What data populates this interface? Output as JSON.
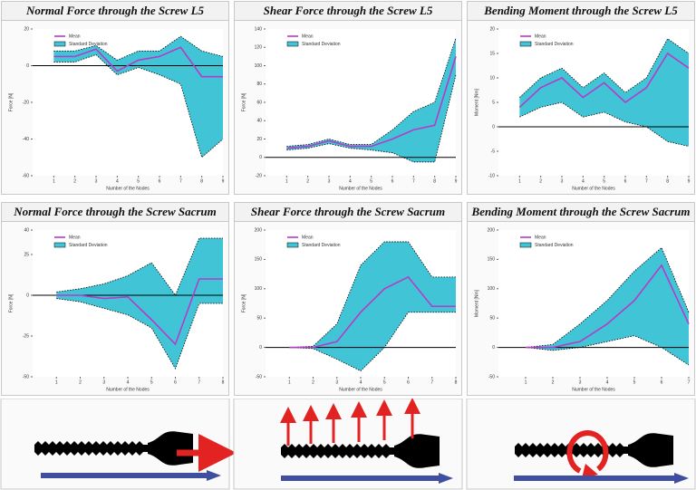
{
  "chart_data": [
    {
      "type": "band-line",
      "title": "Normal Force through the Screw L5",
      "x_label": "Number of the Nodes",
      "y_label": "Force [N]",
      "x": [
        1,
        2,
        3,
        4,
        5,
        6,
        7,
        8,
        9
      ],
      "xlim": [
        0,
        9
      ],
      "xticks": [
        1,
        2,
        3,
        4,
        5,
        6,
        7,
        8,
        9
      ],
      "ylim": [
        -60,
        20
      ],
      "yticks": [
        -60,
        -40,
        -20,
        0,
        20
      ],
      "series": [
        {
          "name": "Mean",
          "color": "#b43cc8",
          "values": [
            5,
            5,
            9,
            -3,
            3,
            5,
            10,
            -6,
            -6
          ]
        },
        {
          "name": "Standard Deviation",
          "color": "#40c4d6",
          "high": [
            8,
            8,
            11,
            3,
            8,
            8,
            16,
            8,
            5
          ],
          "low": [
            2,
            2,
            6,
            -5,
            -1,
            -5,
            -10,
            -50,
            -40
          ]
        }
      ]
    },
    {
      "type": "band-line",
      "title": "Shear Force through the Screw L5",
      "x_label": "Number of the Nodes",
      "y_label": "Force [N]",
      "x": [
        1,
        2,
        3,
        4,
        5,
        6,
        7,
        8,
        9
      ],
      "xlim": [
        0,
        9
      ],
      "xticks": [
        1,
        2,
        3,
        4,
        5,
        6,
        7,
        8,
        9
      ],
      "ylim": [
        -20,
        140
      ],
      "yticks": [
        -20,
        0,
        20,
        40,
        60,
        80,
        100,
        120,
        140
      ],
      "series": [
        {
          "name": "Mean",
          "color": "#b43cc8",
          "values": [
            10,
            12,
            18,
            12,
            12,
            20,
            30,
            35,
            110
          ]
        },
        {
          "name": "Standard Deviation",
          "color": "#40c4d6",
          "high": [
            12,
            14,
            20,
            14,
            14,
            30,
            50,
            60,
            130
          ],
          "low": [
            8,
            10,
            15,
            10,
            8,
            5,
            -5,
            -5,
            90
          ]
        }
      ]
    },
    {
      "type": "band-line",
      "title": "Bending Moment through the Screw L5",
      "x_label": "Number of the Nodes",
      "y_label": "Moment [Nm]",
      "x": [
        1,
        2,
        3,
        4,
        5,
        6,
        7,
        8,
        9
      ],
      "xlim": [
        0,
        9
      ],
      "xticks": [
        1,
        2,
        3,
        4,
        5,
        6,
        7,
        8,
        9
      ],
      "ylim": [
        -10,
        20
      ],
      "yticks": [
        -10,
        -5,
        0,
        5,
        10,
        15,
        20
      ],
      "series": [
        {
          "name": "Mean",
          "color": "#b43cc8",
          "values": [
            4,
            8,
            10,
            6,
            9,
            5,
            8,
            15,
            12
          ]
        },
        {
          "name": "Standard Deviation",
          "color": "#40c4d6",
          "high": [
            6,
            10,
            12,
            8,
            11,
            7,
            10,
            18,
            15
          ],
          "low": [
            2,
            4,
            5,
            2,
            3,
            1,
            0,
            -3,
            -4
          ]
        }
      ]
    },
    {
      "type": "band-line",
      "title": "Normal Force through the Screw Sacrum",
      "x_label": "Number of the Nodes",
      "y_label": "Force [N]",
      "x": [
        1,
        2,
        3,
        4,
        5,
        6,
        7,
        8
      ],
      "xlim": [
        0,
        8
      ],
      "xticks": [
        1,
        2,
        3,
        4,
        5,
        6,
        7,
        8
      ],
      "ylim": [
        -50,
        40
      ],
      "yticks": [
        -50,
        -25,
        0,
        25,
        40
      ],
      "series": [
        {
          "name": "Mean",
          "color": "#b43cc8",
          "values": [
            0,
            0,
            -2,
            -1,
            -15,
            -30,
            10,
            10
          ]
        },
        {
          "name": "Standard Deviation",
          "color": "#40c4d6",
          "high": [
            2,
            4,
            7,
            12,
            20,
            0,
            35,
            35
          ],
          "low": [
            -2,
            -4,
            -8,
            -12,
            -20,
            -45,
            -5,
            -5
          ]
        }
      ]
    },
    {
      "type": "band-line",
      "title": "Shear Force through the Screw Sacrum",
      "x_label": "Number of the Nodes",
      "y_label": "Force [N]",
      "x": [
        1,
        2,
        3,
        4,
        5,
        6,
        7,
        8
      ],
      "xlim": [
        0,
        8
      ],
      "xticks": [
        1,
        2,
        3,
        4,
        5,
        6,
        7,
        8
      ],
      "ylim": [
        -50,
        200
      ],
      "yticks": [
        -50,
        0,
        50,
        100,
        150,
        200
      ],
      "series": [
        {
          "name": "Mean",
          "color": "#b43cc8",
          "values": [
            0,
            0,
            10,
            60,
            100,
            120,
            70,
            70
          ]
        },
        {
          "name": "Standard Deviation",
          "color": "#40c4d6",
          "high": [
            0,
            2,
            40,
            140,
            180,
            180,
            120,
            120
          ],
          "low": [
            0,
            -2,
            -20,
            -40,
            0,
            60,
            60,
            60
          ]
        }
      ]
    },
    {
      "type": "band-line",
      "title": "Bending Moment through the Screw Sacrum",
      "x_label": "Number of the Nodes",
      "y_label": "Moment [Nm]",
      "x": [
        1,
        2,
        3,
        4,
        5,
        6,
        7
      ],
      "xlim": [
        0,
        7
      ],
      "xticks": [
        1,
        2,
        3,
        4,
        5,
        6,
        7
      ],
      "ylim": [
        -50,
        200
      ],
      "yticks": [
        -50,
        0,
        50,
        100,
        150,
        200
      ],
      "series": [
        {
          "name": "Mean",
          "color": "#b43cc8",
          "values": [
            0,
            0,
            10,
            40,
            80,
            140,
            40
          ]
        },
        {
          "name": "Standard Deviation",
          "color": "#40c4d6",
          "high": [
            0,
            5,
            40,
            80,
            130,
            170,
            60
          ],
          "low": [
            0,
            -5,
            0,
            10,
            20,
            0,
            -30
          ]
        }
      ]
    }
  ]
}
